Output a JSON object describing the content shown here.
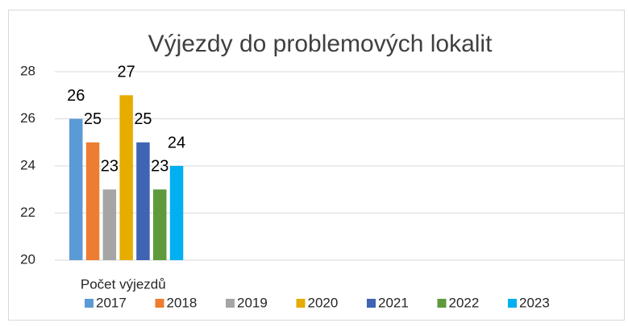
{
  "chart_data": {
    "type": "bar",
    "title": "Výjezdy do problemových lokalit",
    "categories": [
      "Počet výjezdů"
    ],
    "series": [
      {
        "name": "2017",
        "color": "#5b9bd5",
        "values": [
          26
        ]
      },
      {
        "name": "2018",
        "color": "#ed7d31",
        "values": [
          25
        ]
      },
      {
        "name": "2019",
        "color": "#a5a5a5",
        "values": [
          23
        ]
      },
      {
        "name": "2020",
        "color": "#e6ac00",
        "values": [
          27
        ]
      },
      {
        "name": "2021",
        "color": "#3f64b4",
        "values": [
          25
        ]
      },
      {
        "name": "2022",
        "color": "#5e9a3c",
        "values": [
          23
        ]
      },
      {
        "name": "2023",
        "color": "#00b0f0",
        "values": [
          24
        ]
      }
    ],
    "ylim": [
      20,
      28
    ],
    "yticks": [
      20,
      22,
      24,
      26,
      28
    ],
    "grid": true,
    "legend": "bottom"
  }
}
